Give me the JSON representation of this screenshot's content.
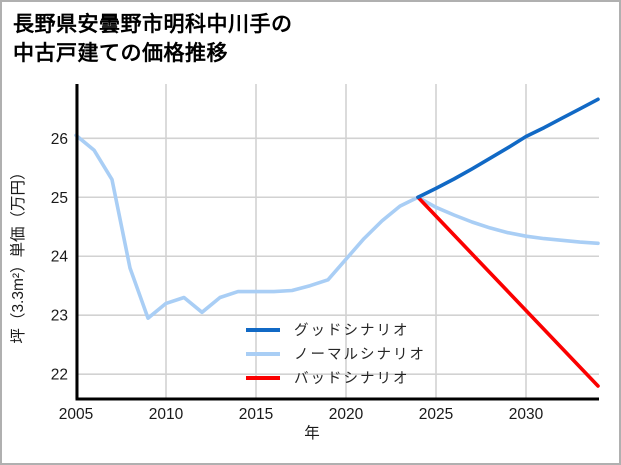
{
  "title": {
    "line1": "長野県安曇野市明科中川手の",
    "line2": "中古戸建ての価格推移"
  },
  "chart_data": {
    "type": "line",
    "title": "長野県安曇野市明科中川手の中古戸建ての価格推移",
    "xlabel": "年",
    "ylabel": "坪（3.3m²）単価（万円）",
    "xlim": [
      2005,
      2034
    ],
    "ylim": [
      21.58,
      26.92
    ],
    "x_ticks": [
      2005,
      2010,
      2015,
      2020,
      2025,
      2030
    ],
    "y_ticks": [
      22,
      23,
      24,
      25,
      26
    ],
    "grid": true,
    "legend_position": "inside-lower-right",
    "colors": {
      "grid": "#d2d2d2",
      "axis": "#000000",
      "tick_text": "#1a1a1a",
      "legend_text": "#262626"
    },
    "series": [
      {
        "name": "グッドシナリオ",
        "color": "#1169c5",
        "z": 3,
        "x": [
          2024,
          2025,
          2026,
          2027,
          2028,
          2029,
          2030,
          2031,
          2032,
          2033,
          2034
        ],
        "values": [
          25.0,
          25.15,
          25.31,
          25.48,
          25.66,
          25.84,
          26.03,
          26.18,
          26.34,
          26.5,
          26.66
        ]
      },
      {
        "name": "ノーマルシナリオ",
        "color": "#a9cef5",
        "z": 1,
        "x": [
          2005,
          2006,
          2007,
          2008,
          2009,
          2010,
          2011,
          2012,
          2013,
          2014,
          2015,
          2016,
          2017,
          2018,
          2019,
          2020,
          2021,
          2022,
          2023,
          2024,
          2025,
          2026,
          2027,
          2028,
          2029,
          2030,
          2031,
          2032,
          2033,
          2034
        ],
        "values": [
          26.05,
          25.8,
          25.3,
          23.8,
          22.95,
          23.2,
          23.3,
          23.05,
          23.3,
          23.4,
          23.4,
          23.4,
          23.42,
          23.5,
          23.6,
          23.95,
          24.3,
          24.6,
          24.85,
          25.0,
          24.83,
          24.7,
          24.58,
          24.48,
          24.4,
          24.34,
          24.3,
          24.27,
          24.24,
          24.22
        ]
      },
      {
        "name": "バッドシナリオ",
        "color": "#fb0000",
        "z": 2,
        "x": [
          2024,
          2025,
          2026,
          2027,
          2028,
          2029,
          2030,
          2031,
          2032,
          2033,
          2034
        ],
        "values": [
          25.0,
          24.68,
          24.36,
          24.04,
          23.72,
          23.4,
          23.08,
          22.76,
          22.44,
          22.12,
          21.8
        ]
      }
    ]
  }
}
